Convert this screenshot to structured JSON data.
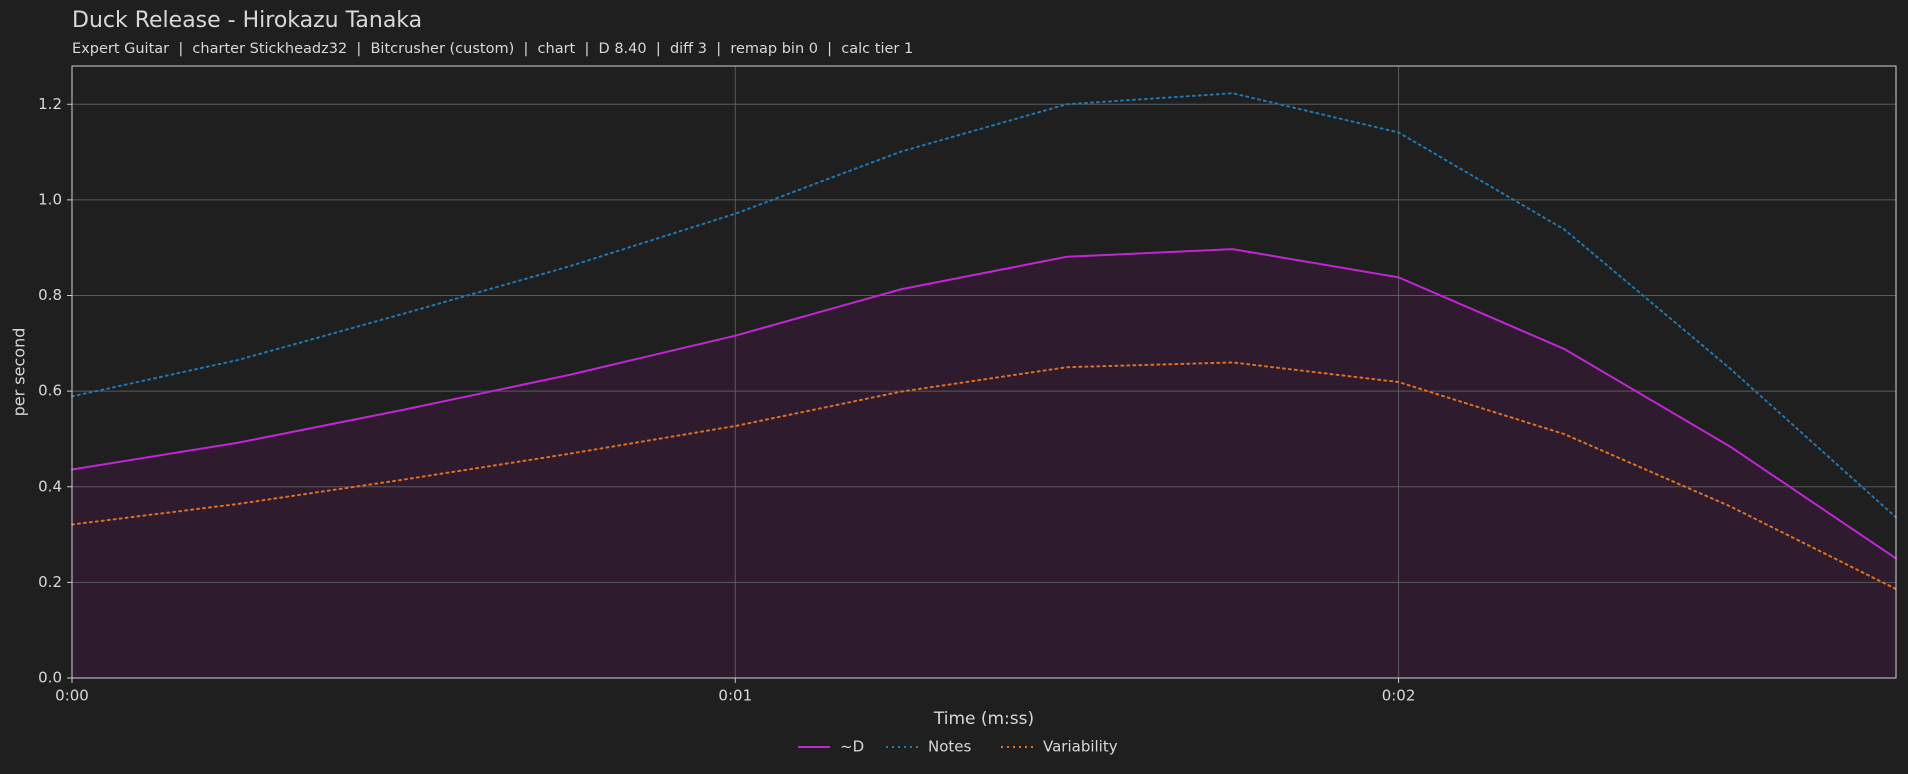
{
  "chart_data": {
    "type": "line",
    "title": "Duck Release - Hirokazu Tanaka",
    "subtitle": "Expert Guitar  |  charter Stickheadz32  |  Bitcrusher (custom)  |  chart  |  D 8.40  |  diff 3  |  remap bin 0  |  calc tier 1",
    "x_label": "Time (m:ss)",
    "y_label": "per second",
    "x": [
      0,
      0.25,
      0.5,
      0.75,
      1,
      1.25,
      1.5,
      1.75,
      2,
      2.25,
      2.5,
      2.75
    ],
    "series": [
      {
        "name": "~D",
        "color": "#c026d3",
        "dash": "solid",
        "fill": "#2e1c2e",
        "values": [
          0.436,
          0.492,
          0.561,
          0.634,
          0.716,
          0.813,
          0.881,
          0.897,
          0.838,
          0.688,
          0.484,
          0.25
        ]
      },
      {
        "name": "Notes",
        "color": "#1f77b4",
        "dash": "dotted",
        "values": [
          0.589,
          0.665,
          0.762,
          0.861,
          0.971,
          1.101,
          1.2,
          1.223,
          1.141,
          0.938,
          0.647,
          0.336
        ]
      },
      {
        "name": "Variability",
        "color": "#e07020",
        "dash": "dotted",
        "values": [
          0.321,
          0.364,
          0.415,
          0.469,
          0.527,
          0.599,
          0.65,
          0.66,
          0.619,
          0.51,
          0.359,
          0.186
        ]
      }
    ],
    "xlim": [
      0,
      2.75
    ],
    "xticks": [
      {
        "value": 0,
        "label": "0:00"
      },
      {
        "value": 1,
        "label": "0:01"
      },
      {
        "value": 2,
        "label": "0:02"
      }
    ],
    "ylim": [
      0,
      1.28
    ],
    "yticks": [
      {
        "value": 0,
        "label": "0.0"
      },
      0.2,
      0.4,
      0.6,
      0.8,
      {
        "value": 1,
        "label": "1.0"
      },
      1.2
    ],
    "grid": true,
    "legend": "bottom"
  }
}
